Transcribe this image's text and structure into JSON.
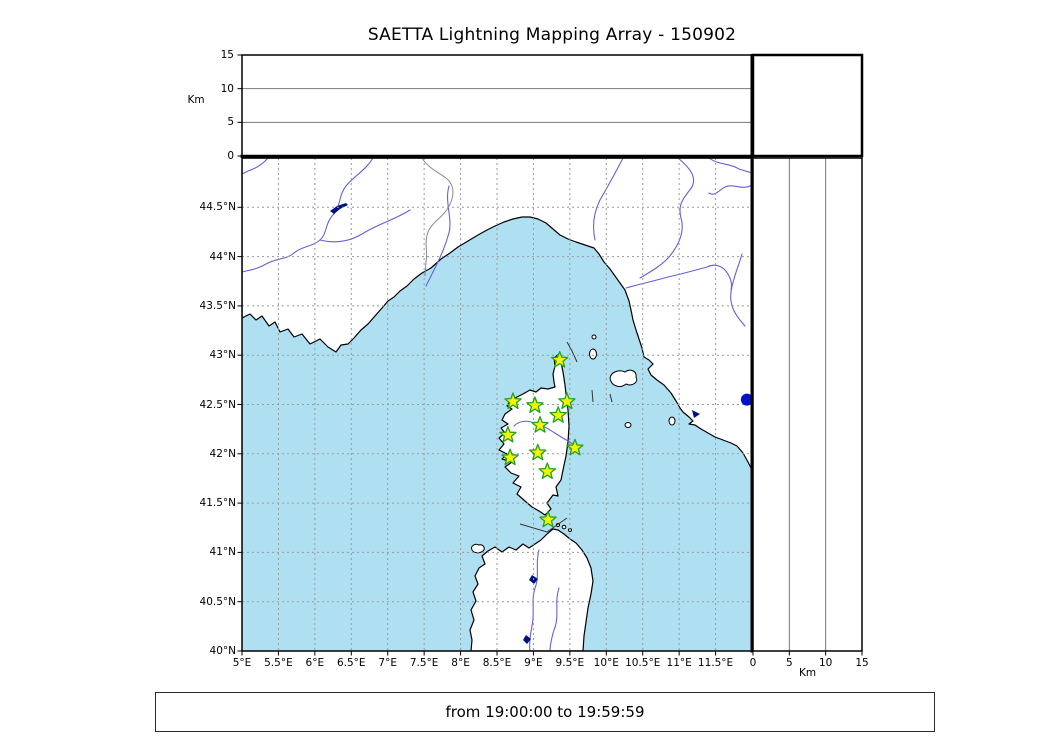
{
  "title": "SAETTA Lightning Mapping Array - 150902",
  "time_range": "from 19:00:00 to 19:59:59",
  "colors": {
    "sea": "#afe0f2",
    "land": "#ffffff",
    "coast": "#000000",
    "river": "#6363d4",
    "border": "#8a8a8a",
    "grid": "#999999",
    "panel_grid": "#777777",
    "lake": "#001080",
    "station_fill": "#f4f400",
    "station_edge": "#22a022",
    "dot": "#0013cc"
  },
  "altitude_axis": {
    "label": "Km",
    "max": 15,
    "ticks": [
      {
        "value": 0,
        "label": "0"
      },
      {
        "value": 5,
        "label": "5"
      },
      {
        "value": 10,
        "label": "10"
      },
      {
        "value": 15,
        "label": "15"
      }
    ],
    "gridline_values": [
      5,
      10
    ]
  },
  "map_axes": {
    "lon_min": 5,
    "lon_max": 12,
    "lat_min": 40,
    "lat_max": 45,
    "lon_ticks": [
      {
        "value": 5,
        "label": "5°E"
      },
      {
        "value": 5.5,
        "label": "5.5°E"
      },
      {
        "value": 6,
        "label": "6°E"
      },
      {
        "value": 6.5,
        "label": "6.5°E"
      },
      {
        "value": 7,
        "label": "7°E"
      },
      {
        "value": 7.5,
        "label": "7.5°E"
      },
      {
        "value": 8,
        "label": "8°E"
      },
      {
        "value": 8.5,
        "label": "8.5°E"
      },
      {
        "value": 9,
        "label": "9°E"
      },
      {
        "value": 9.5,
        "label": "9.5°E"
      },
      {
        "value": 10,
        "label": "10°E"
      },
      {
        "value": 10.5,
        "label": "10.5°E"
      },
      {
        "value": 11,
        "label": "11°E"
      },
      {
        "value": 11.5,
        "label": "11.5°E"
      }
    ],
    "lat_ticks": [
      {
        "value": 40,
        "label": "40°N"
      },
      {
        "value": 40.5,
        "label": "40.5°N"
      },
      {
        "value": 41,
        "label": "41°N"
      },
      {
        "value": 41.5,
        "label": "41.5°N"
      },
      {
        "value": 42,
        "label": "42°N"
      },
      {
        "value": 42.5,
        "label": "42.5°N"
      },
      {
        "value": 43,
        "label": "43°N"
      },
      {
        "value": 43.5,
        "label": "43.5°N"
      },
      {
        "value": 44,
        "label": "44°N"
      },
      {
        "value": 44.5,
        "label": "44.5°N"
      }
    ]
  },
  "stations": [
    {
      "lon": 9.36,
      "lat": 42.95
    },
    {
      "lon": 8.72,
      "lat": 42.53
    },
    {
      "lon": 9.02,
      "lat": 42.49
    },
    {
      "lon": 9.46,
      "lat": 42.53
    },
    {
      "lon": 9.34,
      "lat": 42.39
    },
    {
      "lon": 9.09,
      "lat": 42.29
    },
    {
      "lon": 8.65,
      "lat": 42.19
    },
    {
      "lon": 8.68,
      "lat": 41.96
    },
    {
      "lon": 9.06,
      "lat": 42.01
    },
    {
      "lon": 9.57,
      "lat": 42.06
    },
    {
      "lon": 9.19,
      "lat": 41.82
    },
    {
      "lon": 9.2,
      "lat": 41.33
    }
  ],
  "offshore_point": {
    "lon": 11.93,
    "lat": 42.55
  }
}
